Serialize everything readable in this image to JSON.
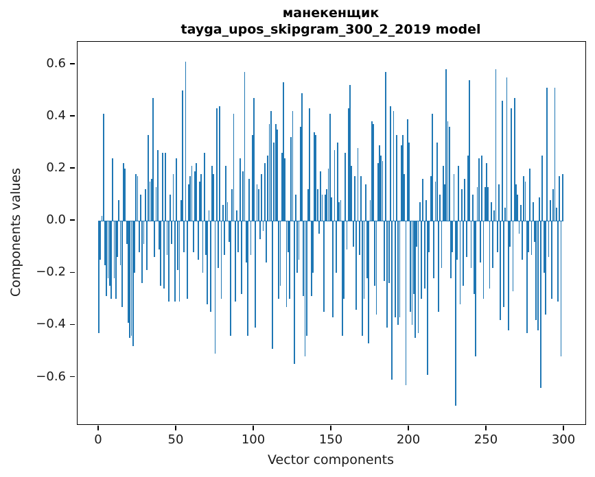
{
  "title": {
    "line1": "манекенщик",
    "line2": "tayga_upos_skipgram_300_2_2019 model"
  },
  "chart_data": {
    "type": "bar",
    "title": "манекенщик",
    "subtitle": "tayga_upos_skipgram_300_2_2019 model",
    "xlabel": "Vector components",
    "ylabel": "Components values",
    "legend": null,
    "grid": false,
    "bar_color": "#1f77b4",
    "spine_color": "#000000",
    "background_color": "#ffffff",
    "xlim": [
      -13.7,
      313.7
    ],
    "ylim": [
      -0.78,
      0.686
    ],
    "x_tick_values": [
      0,
      50,
      100,
      150,
      200,
      250,
      300
    ],
    "x_tick_labels": [
      "0",
      "50",
      "100",
      "150",
      "200",
      "250",
      "300"
    ],
    "y_tick_values": [
      0.6,
      0.4,
      0.2,
      0.0,
      -0.2,
      -0.4,
      -0.6
    ],
    "y_tick_labels": [
      "0.6",
      "0.4",
      "0.2",
      "0.0",
      "−0.2",
      "−0.4",
      "−0.6"
    ],
    "x_start": 0,
    "values": [
      -0.43,
      -0.15,
      0.02,
      0.41,
      -0.17,
      -0.29,
      -0.22,
      -0.25,
      -0.3,
      0.24,
      -0.22,
      -0.3,
      -0.14,
      0.08,
      -0.17,
      -0.33,
      0.22,
      0.2,
      -0.09,
      -0.39,
      -0.45,
      -0.44,
      -0.48,
      -0.2,
      0.18,
      0.17,
      -0.12,
      0.1,
      -0.24,
      -0.09,
      0.12,
      -0.19,
      0.33,
      0.15,
      0.16,
      0.47,
      -0.14,
      0.13,
      0.27,
      -0.11,
      -0.25,
      0.26,
      -0.26,
      0.26,
      -0.13,
      -0.31,
      0.1,
      -0.09,
      0.18,
      -0.31,
      0.24,
      -0.19,
      -0.31,
      0.08,
      0.5,
      -0.12,
      0.61,
      -0.3,
      0.14,
      0.17,
      0.21,
      -0.12,
      0.19,
      0.22,
      -0.15,
      0.15,
      0.18,
      -0.2,
      0.26,
      -0.13,
      -0.32,
      0.04,
      -0.35,
      0.21,
      0.18,
      -0.51,
      0.43,
      -0.18,
      0.44,
      -0.3,
      0.06,
      -0.13,
      0.21,
      0.07,
      -0.08,
      -0.44,
      0.12,
      0.41,
      -0.31,
      0.04,
      -0.12,
      0.24,
      -0.28,
      0.19,
      0.57,
      -0.16,
      -0.44,
      0.16,
      -0.13,
      0.33,
      0.47,
      -0.41,
      0.14,
      0.12,
      -0.07,
      0.18,
      -0.04,
      0.22,
      -0.16,
      0.25,
      0.37,
      0.42,
      -0.49,
      0.3,
      0.37,
      0.35,
      -0.3,
      -0.25,
      0.26,
      0.53,
      0.24,
      -0.33,
      -0.12,
      -0.3,
      0.32,
      0.42,
      -0.55,
      0.1,
      -0.2,
      -0.15,
      0.36,
      0.49,
      -0.29,
      -0.52,
      -0.44,
      0.12,
      0.43,
      -0.29,
      -0.2,
      0.34,
      0.33,
      0.12,
      -0.05,
      0.19,
      0.1,
      -0.35,
      0.1,
      0.12,
      0.2,
      0.41,
      0.09,
      -0.37,
      0.27,
      -0.2,
      0.3,
      0.07,
      0.08,
      -0.44,
      -0.3,
      0.26,
      -0.11,
      0.43,
      0.52,
      0.21,
      -0.1,
      0.17,
      -0.34,
      0.28,
      -0.13,
      0.17,
      -0.44,
      -0.3,
      0.14,
      -0.22,
      -0.47,
      0.08,
      0.38,
      0.37,
      -0.25,
      -0.36,
      0.22,
      0.29,
      0.25,
      0.23,
      -0.23,
      0.57,
      -0.41,
      -0.24,
      0.44,
      -0.61,
      0.42,
      -0.37,
      0.33,
      -0.4,
      -0.37,
      0.29,
      0.33,
      0.18,
      -0.63,
      0.39,
      0.3,
      -0.35,
      -0.4,
      -0.28,
      -0.45,
      -0.1,
      -0.43,
      0.07,
      -0.3,
      0.16,
      -0.26,
      0.08,
      -0.59,
      -0.12,
      0.17,
      0.41,
      -0.22,
      0.15,
      0.3,
      -0.35,
      0.1,
      -0.18,
      0.21,
      0.14,
      0.58,
      0.38,
      0.36,
      -0.22,
      -0.12,
      0.18,
      -0.71,
      -0.15,
      0.21,
      -0.32,
      0.12,
      -0.25,
      0.16,
      -0.14,
      0.25,
      0.54,
      -0.18,
      0.1,
      -0.28,
      -0.52,
      0.13,
      0.24,
      -0.16,
      0.25,
      -0.3,
      0.13,
      0.22,
      0.13,
      -0.26,
      0.07,
      -0.18,
      0.04,
      0.58,
      -0.12,
      0.14,
      -0.38,
      0.46,
      -0.33,
      0.05,
      0.55,
      -0.42,
      -0.1,
      0.43,
      -0.27,
      0.47,
      0.14,
      0.1,
      -0.05,
      0.06,
      -0.15,
      0.17,
      0.15,
      -0.43,
      -0.12,
      0.2,
      -0.13,
      0.07,
      -0.08,
      -0.38,
      -0.42,
      0.09,
      -0.64,
      0.25,
      -0.2,
      -0.36,
      0.51,
      -0.14,
      0.08,
      -0.3,
      0.12,
      0.51,
      0.05,
      -0.31,
      0.17,
      -0.52,
      0.18
    ]
  }
}
